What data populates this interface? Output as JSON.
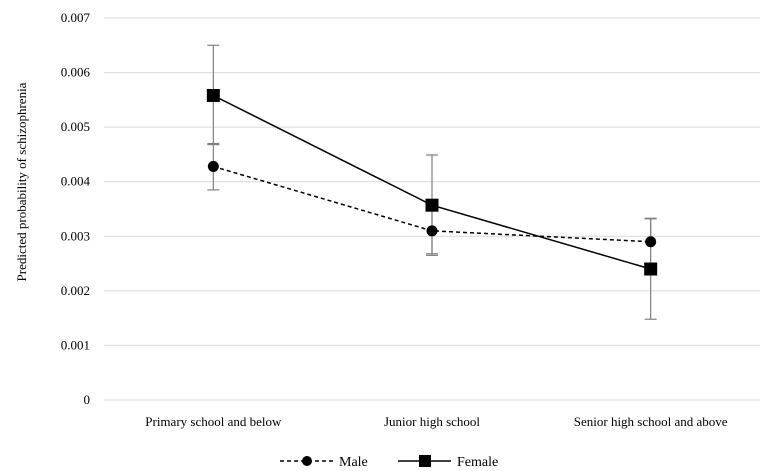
{
  "chart_data": {
    "type": "line",
    "title": "",
    "xlabel": "",
    "ylabel": "Predicted probability of schizophrenia",
    "categories": [
      "Primary school and below",
      "Junior high school",
      "Senior high school and above"
    ],
    "ylim": [
      0,
      0.007
    ],
    "yticks": [
      "0",
      "0.001",
      "0.002",
      "0.003",
      "0.004",
      "0.005",
      "0.006",
      "0.007"
    ],
    "grid": true,
    "legend_position": "bottom",
    "series": [
      {
        "name": "Male",
        "values": [
          0.00428,
          0.0031,
          0.0029
        ],
        "error_low": [
          0.00385,
          0.00265,
          null
        ],
        "error_high": [
          0.0047,
          0.00355,
          0.00333
        ],
        "line_style": "dashed",
        "marker": "circle",
        "color": "#000000"
      },
      {
        "name": "Female",
        "values": [
          0.00558,
          0.00357,
          0.0024
        ],
        "error_low": [
          0.00468,
          0.00268,
          0.00148
        ],
        "error_high": [
          0.0065,
          0.00449,
          0.00332
        ],
        "line_style": "solid",
        "marker": "square",
        "color": "#000000"
      }
    ]
  }
}
